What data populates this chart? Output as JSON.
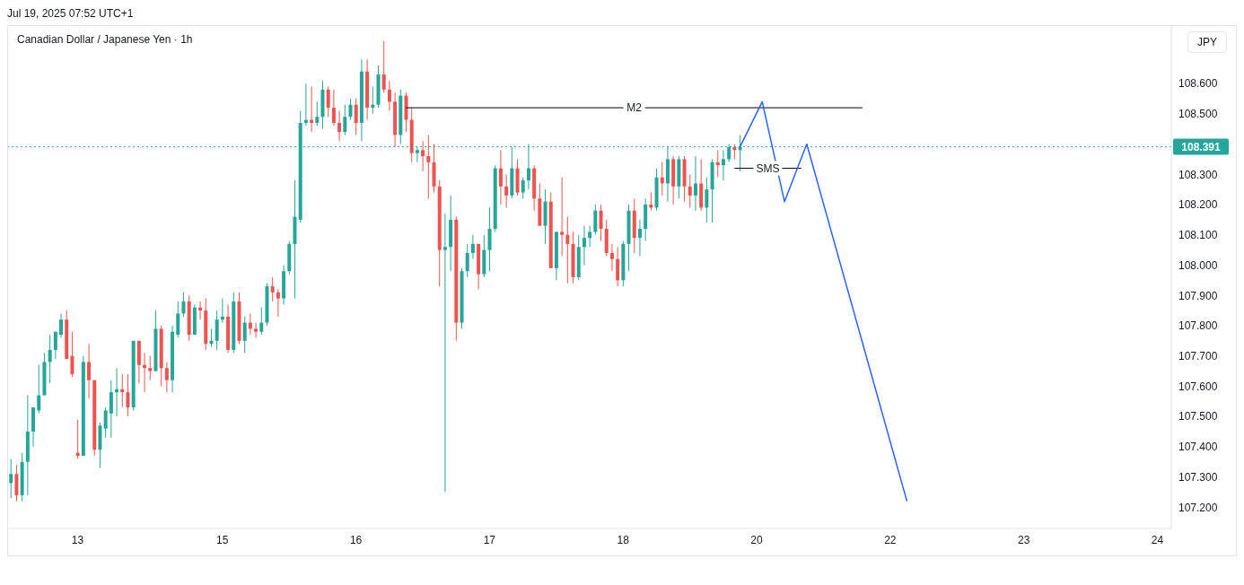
{
  "chart_data": {
    "type": "candlestick",
    "title": "Canadian Dollar / Japanese Yen · 1h",
    "subtitle": "Jul 19, 2025 07:52 UTC+1",
    "annotations": [
      "JPY"
    ],
    "categories": [
      null,
      null,
      null,
      null,
      null,
      null,
      null,
      null,
      null,
      null,
      null,
      null,
      "13",
      null,
      null,
      null,
      null,
      null,
      null,
      null,
      null,
      null,
      null,
      null,
      null,
      null,
      null,
      null,
      null,
      null,
      null,
      null,
      null,
      null,
      null,
      null,
      null,
      null,
      "15",
      null,
      null,
      null,
      null,
      null,
      null,
      null,
      null,
      null,
      null,
      null,
      null,
      null,
      null,
      null,
      null,
      null,
      null,
      null,
      null,
      null,
      null,
      null,
      "16",
      null,
      null,
      null,
      null,
      null,
      null,
      null,
      null,
      null,
      null,
      null,
      null,
      null,
      null,
      null,
      null,
      null,
      null,
      null,
      null,
      null,
      null,
      null,
      "17",
      null,
      null,
      null,
      null,
      null,
      null,
      null,
      null,
      null,
      null,
      null,
      null,
      null,
      null,
      null,
      null,
      null,
      null,
      null,
      null,
      null,
      null,
      null,
      "18",
      null,
      null,
      null,
      null,
      null,
      null,
      null,
      null,
      null,
      null,
      null,
      null,
      null,
      null,
      null,
      null,
      null,
      null,
      null,
      null,
      null,
      null,
      null,
      "20",
      null,
      null,
      null,
      null,
      null,
      null,
      null,
      null,
      null,
      null,
      null,
      null,
      null,
      null,
      null,
      null,
      null,
      null,
      null,
      null,
      null,
      null,
      null,
      "22",
      null,
      null,
      null,
      null,
      null,
      null,
      null,
      null,
      null,
      null,
      null,
      null,
      null,
      null,
      null,
      null,
      null,
      null,
      null,
      null,
      null,
      null,
      null,
      "23",
      null,
      null,
      null,
      null,
      null,
      null,
      null,
      null,
      null,
      null,
      null,
      null,
      null,
      null,
      null,
      null,
      null,
      null,
      null,
      null,
      null,
      null,
      null,
      "24",
      null,
      null
    ],
    "ohlc": [
      [
        107.28,
        107.36,
        107.23,
        107.31
      ],
      [
        107.31,
        107.34,
        107.22,
        107.24
      ],
      [
        107.24,
        107.38,
        107.22,
        107.35
      ],
      [
        107.35,
        107.57,
        107.24,
        107.45
      ],
      [
        107.45,
        107.53,
        107.4,
        107.53
      ],
      [
        107.52,
        107.67,
        107.51,
        107.57
      ],
      [
        107.57,
        107.71,
        107.57,
        107.68
      ],
      [
        107.68,
        107.77,
        107.61,
        107.72
      ],
      [
        107.72,
        107.78,
        107.69,
        107.78
      ],
      [
        107.77,
        107.84,
        107.76,
        107.82
      ],
      [
        107.82,
        107.85,
        107.69,
        107.69
      ],
      [
        107.7,
        107.78,
        107.63,
        107.64
      ],
      [
        107.38,
        107.49,
        107.36,
        107.37
      ],
      [
        107.37,
        107.7,
        107.37,
        107.68
      ],
      [
        107.68,
        107.74,
        107.56,
        107.62
      ],
      [
        107.62,
        107.62,
        107.37,
        107.39
      ],
      [
        107.39,
        107.48,
        107.33,
        107.47
      ],
      [
        107.46,
        107.53,
        107.43,
        107.52
      ],
      [
        107.51,
        107.62,
        107.43,
        107.58
      ],
      [
        107.58,
        107.66,
        107.5,
        107.59
      ],
      [
        107.59,
        107.64,
        107.53,
        107.58
      ],
      [
        107.58,
        107.64,
        107.5,
        107.53
      ],
      [
        107.53,
        107.75,
        107.52,
        107.75
      ],
      [
        107.75,
        107.75,
        107.61,
        107.67
      ],
      [
        107.67,
        107.71,
        107.58,
        107.66
      ],
      [
        107.66,
        107.7,
        107.62,
        107.65
      ],
      [
        107.65,
        107.85,
        107.65,
        107.79
      ],
      [
        107.79,
        107.8,
        107.6,
        107.66
      ],
      [
        107.66,
        107.68,
        107.58,
        107.62
      ],
      [
        107.62,
        107.8,
        107.58,
        107.78
      ],
      [
        107.77,
        107.88,
        107.76,
        107.84
      ],
      [
        107.84,
        107.91,
        107.83,
        107.88
      ],
      [
        107.88,
        107.9,
        107.75,
        107.77
      ],
      [
        107.77,
        107.87,
        107.77,
        107.86
      ],
      [
        107.86,
        107.88,
        107.82,
        107.85
      ],
      [
        107.85,
        107.89,
        107.72,
        107.74
      ],
      [
        107.74,
        107.79,
        107.73,
        107.75
      ],
      [
        107.75,
        107.85,
        107.72,
        107.82
      ],
      [
        107.82,
        107.89,
        107.81,
        107.83
      ],
      [
        107.83,
        107.87,
        107.71,
        107.72
      ],
      [
        107.72,
        107.91,
        107.71,
        107.88
      ],
      [
        107.88,
        107.91,
        107.74,
        107.75
      ],
      [
        107.75,
        107.83,
        107.71,
        107.81
      ],
      [
        107.81,
        107.84,
        107.77,
        107.79
      ],
      [
        107.79,
        107.81,
        107.76,
        107.78
      ],
      [
        107.78,
        107.86,
        107.77,
        107.81
      ],
      [
        107.81,
        107.94,
        107.8,
        107.93
      ],
      [
        107.93,
        107.96,
        107.88,
        107.91
      ],
      [
        107.91,
        107.92,
        107.83,
        107.89
      ],
      [
        107.89,
        108.0,
        107.87,
        107.98
      ],
      [
        107.98,
        108.08,
        107.97,
        108.07
      ],
      [
        108.07,
        108.28,
        107.89,
        108.16
      ],
      [
        108.15,
        108.51,
        108.14,
        108.47
      ],
      [
        108.47,
        108.6,
        108.46,
        108.48
      ],
      [
        108.48,
        108.59,
        108.44,
        108.47
      ],
      [
        108.47,
        108.54,
        108.46,
        108.49
      ],
      [
        108.49,
        108.61,
        108.45,
        108.58
      ],
      [
        108.58,
        108.59,
        108.49,
        108.52
      ],
      [
        108.52,
        108.58,
        108.46,
        108.47
      ],
      [
        108.47,
        108.51,
        108.41,
        108.44
      ],
      [
        108.44,
        108.53,
        108.43,
        108.49
      ],
      [
        108.49,
        108.55,
        108.48,
        108.53
      ],
      [
        108.53,
        108.55,
        108.43,
        108.47
      ],
      [
        108.47,
        108.68,
        108.41,
        108.64
      ],
      [
        108.64,
        108.68,
        108.48,
        108.52
      ],
      [
        108.52,
        108.59,
        108.5,
        108.53
      ],
      [
        108.53,
        108.66,
        108.52,
        108.63
      ],
      [
        108.63,
        108.74,
        108.57,
        108.58
      ],
      [
        108.58,
        108.61,
        108.51,
        108.54
      ],
      [
        108.54,
        108.57,
        108.39,
        108.43
      ],
      [
        108.43,
        108.58,
        108.4,
        108.56
      ],
      [
        108.56,
        108.57,
        108.44,
        108.48
      ],
      [
        108.48,
        108.52,
        108.34,
        108.37
      ],
      [
        108.37,
        108.39,
        108.34,
        108.38
      ],
      [
        108.38,
        108.41,
        108.31,
        108.36
      ],
      [
        108.36,
        108.43,
        108.22,
        108.34
      ],
      [
        108.34,
        108.4,
        108.24,
        108.26
      ],
      [
        108.26,
        108.28,
        107.93,
        108.05
      ],
      [
        108.05,
        108.17,
        107.25,
        108.06
      ],
      [
        108.06,
        108.23,
        107.98,
        108.15
      ],
      [
        108.15,
        108.16,
        107.75,
        107.81
      ],
      [
        107.81,
        107.99,
        107.79,
        107.98
      ],
      [
        107.98,
        108.07,
        107.96,
        108.04
      ],
      [
        108.04,
        108.1,
        108.02,
        108.07
      ],
      [
        108.07,
        108.07,
        107.92,
        107.97
      ],
      [
        107.97,
        108.1,
        107.96,
        108.05
      ],
      [
        108.05,
        108.19,
        107.98,
        108.12
      ],
      [
        108.12,
        108.33,
        108.11,
        108.32
      ],
      [
        108.32,
        108.38,
        108.2,
        108.26
      ],
      [
        108.26,
        108.3,
        108.19,
        108.23
      ],
      [
        108.23,
        108.39,
        108.22,
        108.32
      ],
      [
        108.32,
        108.35,
        108.23,
        108.24
      ],
      [
        108.24,
        108.29,
        108.22,
        108.28
      ],
      [
        108.28,
        108.4,
        108.25,
        108.32
      ],
      [
        108.32,
        108.33,
        108.18,
        108.22
      ],
      [
        108.22,
        108.27,
        108.13,
        108.13
      ],
      [
        108.13,
        108.25,
        108.07,
        108.21
      ],
      [
        108.21,
        108.24,
        107.99,
        107.99
      ],
      [
        107.99,
        108.11,
        107.95,
        108.11
      ],
      [
        108.11,
        108.29,
        108.03,
        108.1
      ],
      [
        108.1,
        108.16,
        107.94,
        108.07
      ],
      [
        108.07,
        108.11,
        107.94,
        107.96
      ],
      [
        107.96,
        108.1,
        107.95,
        108.06
      ],
      [
        108.06,
        108.13,
        108.0,
        108.09
      ],
      [
        108.09,
        108.13,
        108.06,
        108.11
      ],
      [
        108.11,
        108.2,
        108.1,
        108.18
      ],
      [
        108.18,
        108.2,
        108.08,
        108.12
      ],
      [
        108.12,
        108.15,
        108.03,
        108.04
      ],
      [
        108.04,
        108.07,
        107.98,
        108.02
      ],
      [
        108.02,
        108.06,
        107.93,
        107.95
      ],
      [
        107.95,
        108.08,
        107.93,
        108.07
      ],
      [
        108.07,
        108.2,
        107.98,
        108.18
      ],
      [
        108.18,
        108.22,
        108.04,
        108.09
      ],
      [
        108.09,
        108.15,
        108.03,
        108.12
      ],
      [
        108.12,
        108.22,
        108.08,
        108.2
      ],
      [
        108.2,
        108.24,
        108.18,
        108.19
      ],
      [
        108.19,
        108.32,
        108.18,
        108.29
      ],
      [
        108.29,
        108.34,
        108.23,
        108.27
      ],
      [
        108.27,
        108.39,
        108.21,
        108.35
      ],
      [
        108.35,
        108.36,
        108.2,
        108.26
      ],
      [
        108.26,
        108.36,
        108.22,
        108.35
      ],
      [
        108.35,
        108.36,
        108.21,
        108.26
      ],
      [
        108.26,
        108.3,
        108.19,
        108.23
      ],
      [
        108.23,
        108.36,
        108.18,
        108.27
      ],
      [
        108.27,
        108.35,
        108.18,
        108.19
      ],
      [
        108.19,
        108.29,
        108.14,
        108.25
      ],
      [
        108.25,
        108.35,
        108.14,
        108.34
      ],
      [
        108.34,
        108.38,
        108.29,
        108.33
      ],
      [
        108.33,
        108.38,
        108.28,
        108.35
      ],
      [
        108.35,
        108.4,
        108.34,
        108.39
      ],
      [
        108.39,
        108.4,
        108.35,
        108.38
      ],
      [
        108.38,
        108.43,
        108.31,
        108.391
      ],
      null,
      null,
      null,
      null,
      null,
      null,
      null,
      null,
      null,
      null,
      null,
      null,
      null,
      null,
      null,
      null,
      null,
      null,
      null,
      null,
      null,
      null,
      null,
      null,
      null,
      null,
      null,
      null,
      null,
      null,
      null,
      null,
      null,
      null,
      null,
      null,
      null,
      null,
      null,
      null,
      null,
      null,
      null,
      null,
      null,
      null,
      null,
      null,
      null,
      null,
      null,
      null,
      null,
      null,
      null,
      null,
      null,
      null,
      null,
      null,
      null,
      null,
      null,
      null,
      null,
      null,
      null,
      null,
      null,
      null,
      null,
      null,
      null,
      null,
      null,
      null,
      null
    ],
    "colors": [
      "#26a69a",
      "#ef5350",
      "#26a69a",
      "#26a69a",
      "#26a69a",
      "#26a69a",
      "#26a69a",
      "#26a69a",
      "#26a69a",
      "#26a69a",
      "#ef5350",
      "#ef5350",
      "#ef5350",
      "#26a69a",
      "#ef5350",
      "#ef5350",
      "#26a69a",
      "#26a69a",
      "#26a69a",
      "#26a69a",
      "#ef5350",
      "#ef5350",
      "#26a69a",
      "#ef5350",
      "#ef5350",
      "#ef5350",
      "#26a69a",
      "#ef5350",
      "#ef5350",
      "#26a69a",
      "#26a69a",
      "#26a69a",
      "#ef5350",
      "#26a69a",
      "#ef5350",
      "#ef5350",
      "#26a69a",
      "#26a69a",
      "#26a69a",
      "#ef5350",
      "#26a69a",
      "#ef5350",
      "#26a69a",
      "#ef5350",
      "#ef5350",
      "#26a69a",
      "#26a69a",
      "#ef5350",
      "#ef5350",
      "#26a69a",
      "#26a69a",
      "#26a69a",
      "#26a69a",
      "#26a69a",
      "#ef5350",
      "#26a69a",
      "#26a69a",
      "#ef5350",
      "#ef5350",
      "#ef5350",
      "#26a69a",
      "#26a69a",
      "#ef5350",
      "#26a69a",
      "#ef5350",
      "#26a69a",
      "#26a69a",
      "#ef5350",
      "#ef5350",
      "#ef5350",
      "#26a69a",
      "#ef5350",
      "#ef5350",
      "#26a69a",
      "#ef5350",
      "#ef5350",
      "#ef5350",
      "#ef5350",
      "#26a69a",
      "#26a69a",
      "#ef5350",
      "#26a69a",
      "#26a69a",
      "#26a69a",
      "#ef5350",
      "#26a69a",
      "#26a69a",
      "#26a69a",
      "#ef5350",
      "#ef5350",
      "#26a69a",
      "#ef5350",
      "#26a69a",
      "#26a69a",
      "#ef5350",
      "#ef5350",
      "#26a69a",
      "#ef5350",
      "#26a69a",
      "#ef5350",
      "#ef5350",
      "#ef5350",
      "#26a69a",
      "#26a69a",
      "#26a69a",
      "#26a69a",
      "#ef5350",
      "#ef5350",
      "#ef5350",
      "#ef5350",
      "#26a69a",
      "#26a69a",
      "#ef5350",
      "#26a69a",
      "#26a69a",
      "#ef5350",
      "#26a69a",
      "#ef5350",
      "#26a69a",
      "#ef5350",
      "#26a69a",
      "#ef5350",
      "#ef5350",
      "#26a69a",
      "#ef5350",
      "#26a69a",
      "#26a69a",
      "#ef5350",
      "#26a69a",
      "#26a69a",
      "#ef5350",
      "#26a69a",
      null,
      null,
      null,
      null,
      null,
      null,
      null,
      null,
      null,
      null,
      null,
      null,
      null,
      null,
      null,
      null,
      null,
      null,
      null,
      null,
      null,
      null,
      null,
      null,
      null,
      null,
      null,
      null,
      null,
      null,
      null,
      null,
      null,
      null,
      null,
      null,
      null,
      null,
      null,
      null,
      null,
      null,
      null,
      null,
      null,
      null,
      null,
      null,
      null,
      null,
      null,
      null,
      null,
      null,
      null,
      null,
      null,
      null,
      null,
      null,
      null,
      null,
      null,
      null,
      null,
      null,
      null,
      null,
      null,
      null,
      null,
      null,
      null,
      null,
      null,
      null,
      null
    ],
    "series": [
      {
        "name": "M2",
        "type": "line",
        "color": "#000000",
        "values": [
          null,
          null,
          null,
          null,
          null,
          null,
          null,
          null,
          null,
          null,
          null,
          null,
          null,
          null,
          null,
          null,
          null,
          null,
          null,
          null,
          null,
          null,
          null,
          null,
          null,
          null,
          null,
          null,
          null,
          null,
          null,
          null,
          null,
          null,
          null,
          null,
          null,
          null,
          null,
          null,
          null,
          null,
          null,
          null,
          null,
          null,
          null,
          null,
          null,
          null,
          null,
          null,
          null,
          null,
          null,
          null,
          null,
          null,
          null,
          null,
          null,
          null,
          null,
          null,
          null,
          null,
          null,
          null,
          null,
          null,
          null,
          108.52,
          null,
          null,
          null,
          null,
          null,
          null,
          null,
          null,
          null,
          null,
          null,
          null,
          null,
          null,
          null,
          null,
          null,
          null,
          null,
          null,
          null,
          null,
          null,
          null,
          null,
          null,
          null,
          null,
          null,
          null,
          null,
          null,
          null,
          null,
          null,
          null,
          null,
          null,
          null,
          null,
          null,
          null,
          null,
          null,
          null,
          null,
          null,
          null,
          null,
          null,
          null,
          null,
          null,
          null,
          null,
          null,
          null,
          null,
          null,
          null,
          null,
          null,
          null,
          null,
          null,
          null,
          null,
          null,
          null,
          null,
          null,
          null,
          null,
          null,
          null,
          null,
          null,
          null,
          null,
          null,
          null,
          108.52,
          null,
          null,
          null,
          null,
          null,
          null,
          null,
          null,
          null,
          null,
          null,
          null,
          null,
          null,
          null,
          null,
          null,
          null,
          null,
          null,
          null,
          null,
          null,
          null,
          null,
          null,
          null,
          null,
          null,
          null,
          null,
          null,
          null,
          null,
          null,
          null,
          null,
          null,
          null,
          null,
          null,
          null,
          null,
          null,
          null,
          null,
          null,
          null,
          null,
          null,
          null,
          null,
          null,
          null,
          null
        ]
      },
      {
        "name": "SMS",
        "type": "line",
        "color": "#000000",
        "values": [
          null,
          null,
          null,
          null,
          null,
          null,
          null,
          null,
          null,
          null,
          null,
          null,
          null,
          null,
          null,
          null,
          null,
          null,
          null,
          null,
          null,
          null,
          null,
          null,
          null,
          null,
          null,
          null,
          null,
          null,
          null,
          null,
          null,
          null,
          null,
          null,
          null,
          null,
          null,
          null,
          null,
          null,
          null,
          null,
          null,
          null,
          null,
          null,
          null,
          null,
          null,
          null,
          null,
          null,
          null,
          null,
          null,
          null,
          null,
          null,
          null,
          null,
          null,
          null,
          null,
          null,
          null,
          null,
          null,
          null,
          null,
          null,
          null,
          null,
          null,
          null,
          null,
          null,
          null,
          null,
          null,
          null,
          null,
          null,
          null,
          null,
          null,
          null,
          null,
          null,
          null,
          null,
          null,
          null,
          null,
          null,
          null,
          null,
          null,
          null,
          null,
          null,
          null,
          null,
          null,
          null,
          null,
          null,
          null,
          null,
          null,
          null,
          null,
          null,
          null,
          null,
          null,
          null,
          null,
          null,
          null,
          null,
          null,
          null,
          null,
          null,
          null,
          null,
          null,
          null,
          108.32,
          null,
          null,
          null,
          null,
          null,
          null,
          null,
          null,
          null,
          null,
          null,
          108.32,
          null,
          null,
          null,
          null,
          null,
          null,
          null,
          null,
          null,
          null,
          null,
          null,
          null,
          null,
          null,
          null,
          null,
          null,
          null,
          null,
          null,
          null,
          null,
          null,
          null,
          null,
          null,
          null,
          null,
          null,
          null,
          null,
          null,
          null,
          null,
          null,
          null,
          null,
          null,
          null,
          null,
          null,
          null,
          null,
          null,
          null,
          null,
          null,
          null,
          null,
          null,
          null,
          null,
          null,
          null,
          null,
          null,
          null,
          null,
          null,
          null,
          null,
          null,
          null,
          null,
          null
        ]
      },
      {
        "type": "line",
        "color": "#2962ff",
        "values": [
          null,
          null,
          null,
          null,
          null,
          null,
          null,
          null,
          null,
          null,
          null,
          null,
          null,
          null,
          null,
          null,
          null,
          null,
          null,
          null,
          null,
          null,
          null,
          null,
          null,
          null,
          null,
          null,
          null,
          null,
          null,
          null,
          null,
          null,
          null,
          null,
          null,
          null,
          null,
          null,
          null,
          null,
          null,
          null,
          null,
          null,
          null,
          null,
          null,
          null,
          null,
          null,
          null,
          null,
          null,
          null,
          null,
          null,
          null,
          null,
          null,
          null,
          null,
          null,
          null,
          null,
          null,
          null,
          null,
          null,
          null,
          null,
          null,
          null,
          null,
          null,
          null,
          null,
          null,
          null,
          null,
          null,
          null,
          null,
          null,
          null,
          null,
          null,
          null,
          null,
          null,
          null,
          null,
          null,
          null,
          null,
          null,
          null,
          null,
          null,
          null,
          null,
          null,
          null,
          null,
          null,
          null,
          null,
          null,
          null,
          null,
          null,
          null,
          null,
          null,
          null,
          null,
          null,
          null,
          null,
          null,
          null,
          null,
          null,
          null,
          null,
          null,
          null,
          null,
          null,
          null,
          108.39,
          null,
          null,
          null,
          108.54,
          null,
          null,
          null,
          108.21,
          null,
          null,
          null,
          108.4,
          null,
          null,
          null,
          null,
          null,
          null,
          null,
          null,
          null,
          null,
          null,
          null,
          null,
          null,
          null,
          null,
          null,
          107.22,
          null,
          null,
          null,
          null,
          null,
          null,
          null,
          null,
          null,
          null,
          null,
          null,
          null,
          null,
          null,
          null,
          null,
          null,
          null,
          null,
          null,
          null,
          null,
          null,
          null,
          null,
          null,
          null,
          null,
          null,
          null,
          null,
          null,
          null,
          null,
          null,
          null,
          null,
          null,
          null,
          null,
          null,
          null,
          null,
          null,
          null,
          null
        ]
      }
    ],
    "ref_lines": [
      {
        "axis": "y",
        "value": 108.391,
        "label": "108.391",
        "color": "#26a69a",
        "line_style": "dotted"
      }
    ],
    "ylim": [
      107.13,
      108.79
    ],
    "yticks": [
      {
        "value": 107.2,
        "label": "107.200"
      },
      {
        "value": 107.3,
        "label": "107.300"
      },
      {
        "value": 107.4,
        "label": "107.400"
      },
      {
        "value": 107.5,
        "label": "107.500"
      },
      {
        "value": 107.6,
        "label": "107.600"
      },
      {
        "value": 107.7,
        "label": "107.700"
      },
      {
        "value": 107.8,
        "label": "107.800"
      },
      {
        "value": 107.9,
        "label": "107.900"
      },
      {
        "value": 108.0,
        "label": "108.000"
      },
      {
        "value": 108.1,
        "label": "108.100"
      },
      {
        "value": 108.2,
        "label": "108.200"
      },
      {
        "value": 108.3,
        "label": "108.300"
      },
      {
        "value": 108.5,
        "label": "108.500"
      },
      {
        "value": 108.6,
        "label": "108.600"
      }
    ]
  }
}
